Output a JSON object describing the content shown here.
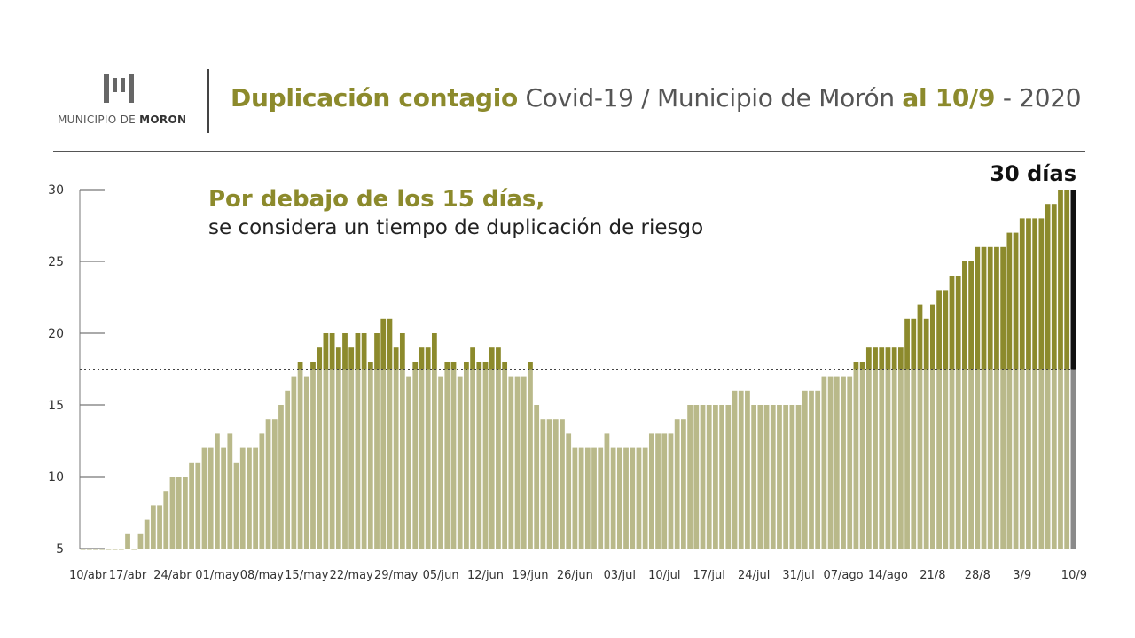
{
  "header": {
    "logo_text_prefix": "MUNICIPIO DE",
    "logo_text_name": "MORON",
    "title_part1": "Duplicación contagio",
    "title_part2": " Covid-19 / Municipio de Morón ",
    "title_part3": "al 10/9",
    "title_part4": " - 2020"
  },
  "colors": {
    "accent": "#8c8a2c",
    "bar_upper": "#8c8a2c",
    "bar_lower": "#b9b98a",
    "last_bar_upper": "#111111",
    "last_bar_lower": "#8a8a8a"
  },
  "annotation": {
    "line1": "Por debajo de los 15 días,",
    "line2": "se considera un tiempo de duplicación de riesgo"
  },
  "last_bar_label": "30 días",
  "chart_data": {
    "type": "bar",
    "title": "Duplicación contagio Covid-19 / Municipio de Morón al 10/9 - 2020",
    "xlabel": "",
    "ylabel": "",
    "ylim": [
      5,
      30
    ],
    "y_ticks": [
      5,
      10,
      15,
      20,
      25,
      30
    ],
    "threshold_line": 17.5,
    "x_tick_labels": [
      "10/abr",
      "17/abr",
      "24/abr",
      "01/may",
      "08/may",
      "15/may",
      "22/may",
      "29/may",
      "05/jun",
      "12/jun",
      "19/jun",
      "26/jun",
      "03/jul",
      "10/jul",
      "17/jul",
      "24/jul",
      "31/jul",
      "07/ago",
      "14/ago",
      "21/8",
      "28/8",
      "3/9",
      "10/9"
    ],
    "values": [
      5,
      5,
      5,
      5,
      5,
      5,
      5,
      6,
      5,
      6,
      7,
      8,
      8,
      9,
      10,
      10,
      10,
      11,
      11,
      12,
      12,
      13,
      12,
      13,
      11,
      12,
      12,
      12,
      13,
      14,
      14,
      15,
      16,
      17,
      18,
      17,
      18,
      19,
      20,
      20,
      19,
      20,
      19,
      20,
      20,
      18,
      20,
      21,
      21,
      19,
      20,
      17,
      18,
      19,
      19,
      20,
      17,
      18,
      18,
      17,
      18,
      19,
      18,
      18,
      19,
      19,
      18,
      17,
      17,
      17,
      18,
      15,
      14,
      14,
      14,
      14,
      13,
      12,
      12,
      12,
      12,
      12,
      13,
      12,
      12,
      12,
      12,
      12,
      12,
      13,
      13,
      13,
      13,
      14,
      14,
      15,
      15,
      15,
      15,
      15,
      15,
      15,
      16,
      16,
      16,
      15,
      15,
      15,
      15,
      15,
      15,
      15,
      15,
      16,
      16,
      16,
      17,
      17,
      17,
      17,
      17,
      18,
      18,
      19,
      19,
      19,
      19,
      19,
      19,
      21,
      21,
      22,
      21,
      22,
      23,
      23,
      24,
      24,
      25,
      25,
      26,
      26,
      26,
      26,
      26,
      27,
      27,
      28,
      28,
      28,
      28,
      29,
      29,
      30,
      30,
      30
    ]
  }
}
